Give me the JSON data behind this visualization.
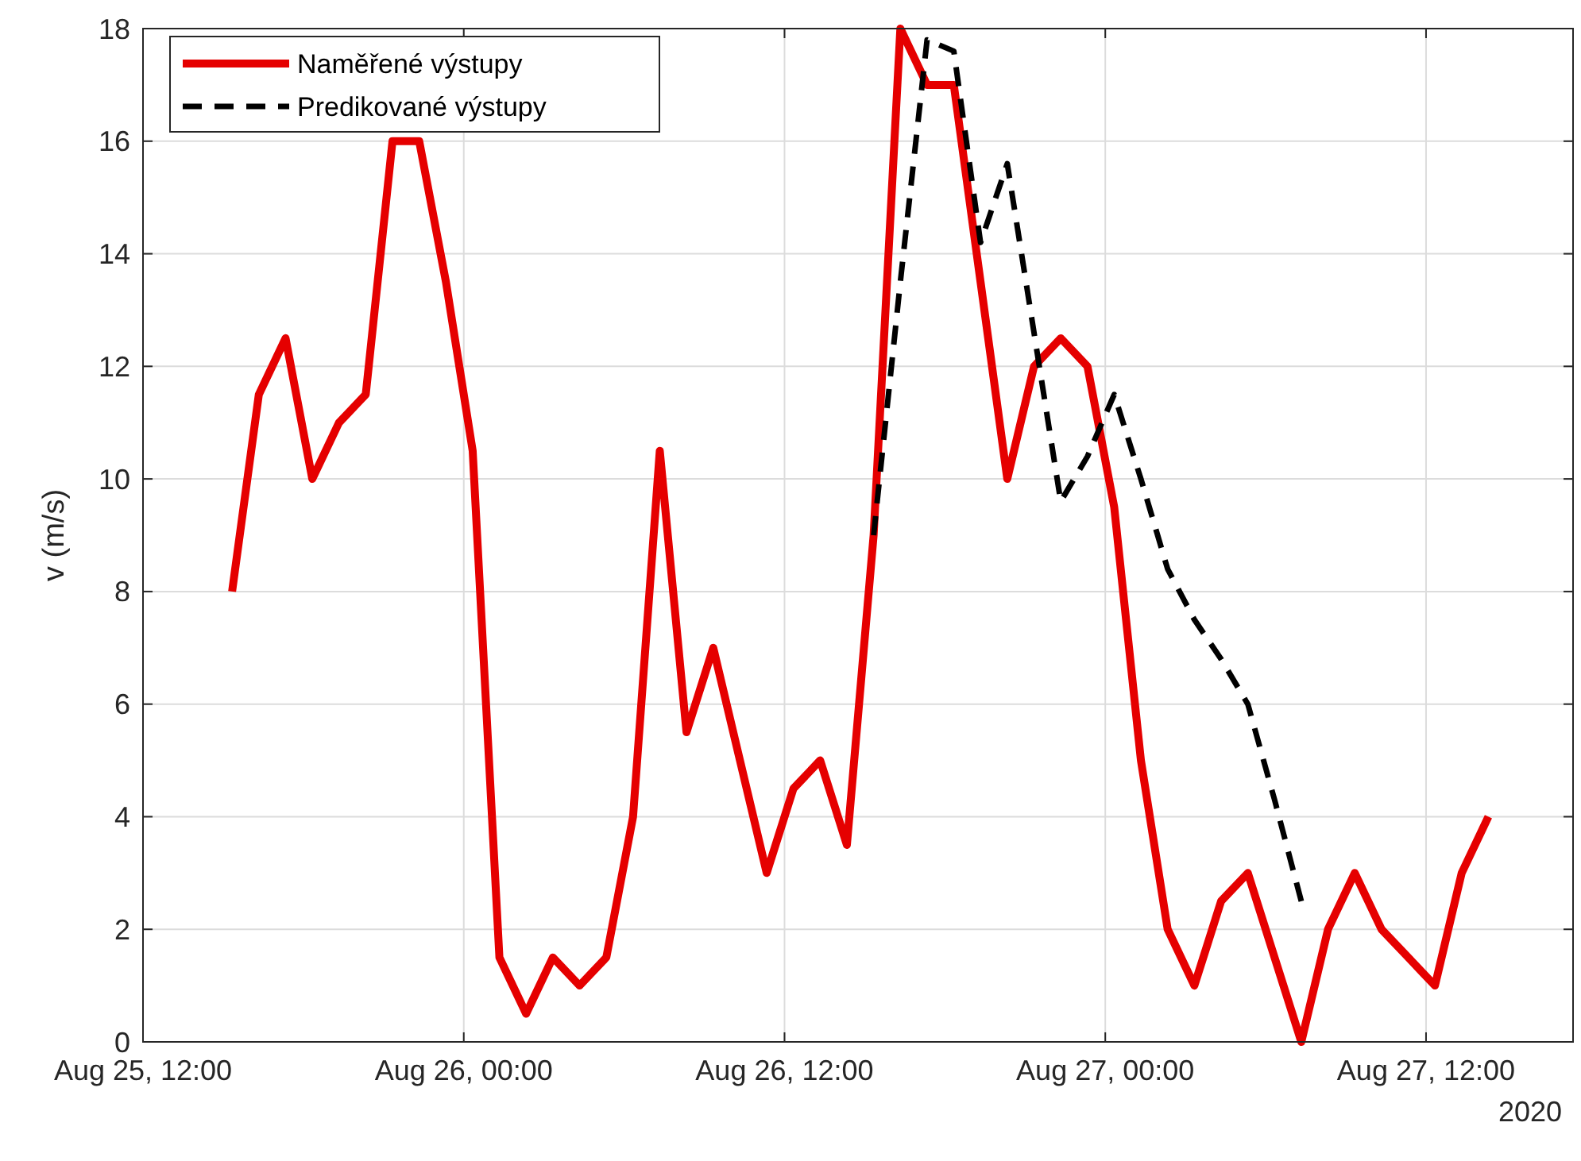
{
  "chart_data": {
    "type": "line",
    "ylabel": "v (m/s)",
    "x": [
      "2020-08-25T15:20",
      "2020-08-25T16:20",
      "2020-08-25T17:20",
      "2020-08-25T18:20",
      "2020-08-25T19:20",
      "2020-08-25T20:20",
      "2020-08-25T21:20",
      "2020-08-25T22:20",
      "2020-08-25T23:20",
      "2020-08-26T00:20",
      "2020-08-26T01:20",
      "2020-08-26T02:20",
      "2020-08-26T03:20",
      "2020-08-26T04:20",
      "2020-08-26T05:20",
      "2020-08-26T06:20",
      "2020-08-26T07:20",
      "2020-08-26T08:20",
      "2020-08-26T09:20",
      "2020-08-26T10:20",
      "2020-08-26T11:20",
      "2020-08-26T12:20",
      "2020-08-26T13:20",
      "2020-08-26T14:20",
      "2020-08-26T15:20",
      "2020-08-26T16:20",
      "2020-08-26T17:20",
      "2020-08-26T18:20",
      "2020-08-26T19:20",
      "2020-08-26T20:20",
      "2020-08-26T21:20",
      "2020-08-26T22:20",
      "2020-08-26T23:20",
      "2020-08-27T00:20",
      "2020-08-27T01:20",
      "2020-08-27T02:20",
      "2020-08-27T03:20",
      "2020-08-27T04:20",
      "2020-08-27T05:20",
      "2020-08-27T06:20",
      "2020-08-27T07:20",
      "2020-08-27T08:20",
      "2020-08-27T09:20",
      "2020-08-27T10:20",
      "2020-08-27T11:20",
      "2020-08-27T12:20",
      "2020-08-27T13:20",
      "2020-08-27T14:20"
    ],
    "series": [
      {
        "name": "Naměřené výstupy",
        "color": "#e50000",
        "line_style": "solid",
        "values": [
          8,
          11.5,
          12.5,
          10,
          11,
          11.5,
          16,
          16,
          13.5,
          10.5,
          1.5,
          0.5,
          1.5,
          1,
          1.5,
          4,
          10.5,
          5.5,
          7,
          5,
          3,
          4.5,
          5,
          3.5,
          9,
          18,
          17,
          17,
          13.5,
          10,
          12,
          12.5,
          12,
          9.5,
          5,
          2,
          1,
          2.5,
          3,
          1.5,
          0,
          2,
          3,
          2,
          1.5,
          1,
          3,
          4
        ]
      },
      {
        "name": "Predikované výstupy",
        "color": "#000000",
        "line_style": "dashed",
        "values": [
          null,
          null,
          null,
          null,
          null,
          null,
          null,
          null,
          null,
          null,
          null,
          null,
          null,
          null,
          null,
          null,
          null,
          null,
          null,
          null,
          null,
          null,
          null,
          null,
          9,
          13.5,
          17.8,
          17.6,
          14.2,
          15.6,
          12.6,
          9.6,
          10.4,
          11.5,
          10,
          8.4,
          7.5,
          6.8,
          6,
          4.3,
          2.5,
          null,
          null,
          null,
          null,
          null,
          null,
          null
        ]
      }
    ],
    "xlim": [
      "2020-08-25T12:00",
      "2020-08-27T17:30"
    ],
    "xticks": [
      {
        "value": "2020-08-25T12:00",
        "label": "Aug 25, 12:00"
      },
      {
        "value": "2020-08-26T00:00",
        "label": "Aug 26, 00:00"
      },
      {
        "value": "2020-08-26T12:00",
        "label": "Aug 26, 12:00"
      },
      {
        "value": "2020-08-27T00:00",
        "label": "Aug 27, 00:00"
      },
      {
        "value": "2020-08-27T12:00",
        "label": "Aug 27, 12:00"
      }
    ],
    "ylim": [
      0,
      18
    ],
    "yticks": [
      0,
      2,
      4,
      6,
      8,
      10,
      12,
      14,
      16,
      18
    ],
    "grid": true,
    "legend": "top left",
    "annotations": [
      "2020"
    ]
  }
}
